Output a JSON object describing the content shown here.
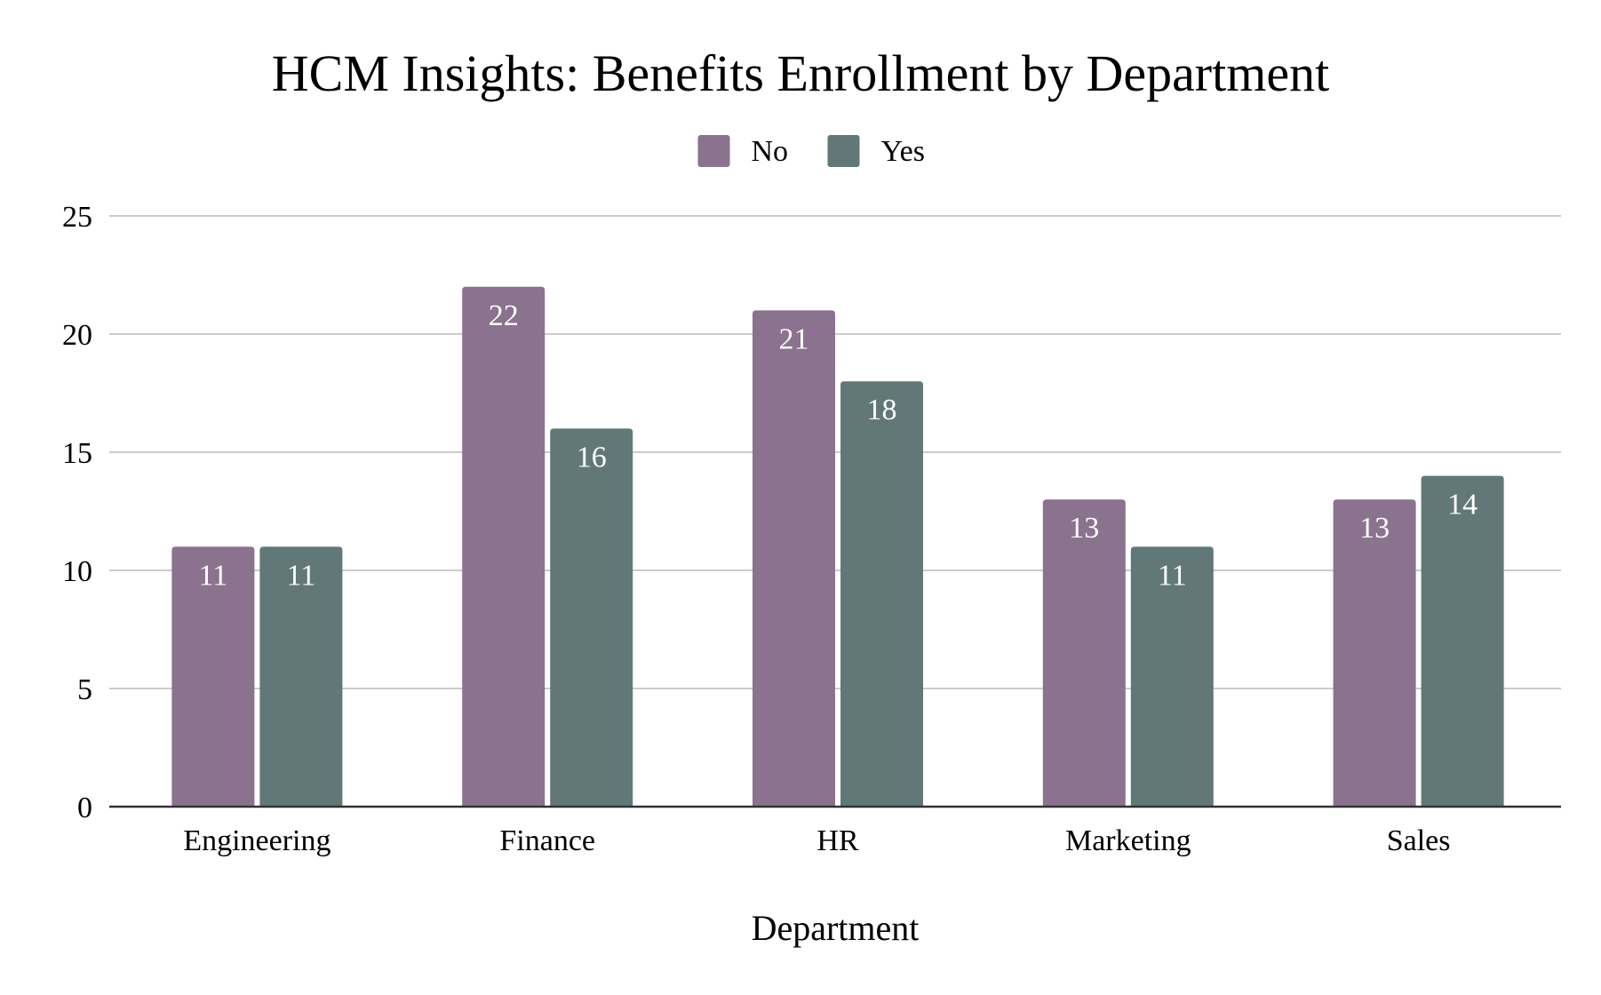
{
  "chart_data": {
    "type": "bar",
    "title": "HCM Insights: Benefits Enrollment by Department",
    "xlabel": "Department",
    "ylabel": "",
    "categories": [
      "Engineering",
      "Finance",
      "HR",
      "Marketing",
      "Sales"
    ],
    "series": [
      {
        "name": "No",
        "values": [
          11,
          22,
          21,
          13,
          13
        ],
        "color": "#8b728e"
      },
      {
        "name": "Yes",
        "values": [
          11,
          16,
          18,
          11,
          14
        ],
        "color": "#627878"
      }
    ],
    "ylim": [
      0,
      25
    ],
    "yticks": [
      0,
      5,
      10,
      15,
      20,
      25
    ],
    "grid": true,
    "legend_position": "top-center",
    "data_labels": true
  }
}
